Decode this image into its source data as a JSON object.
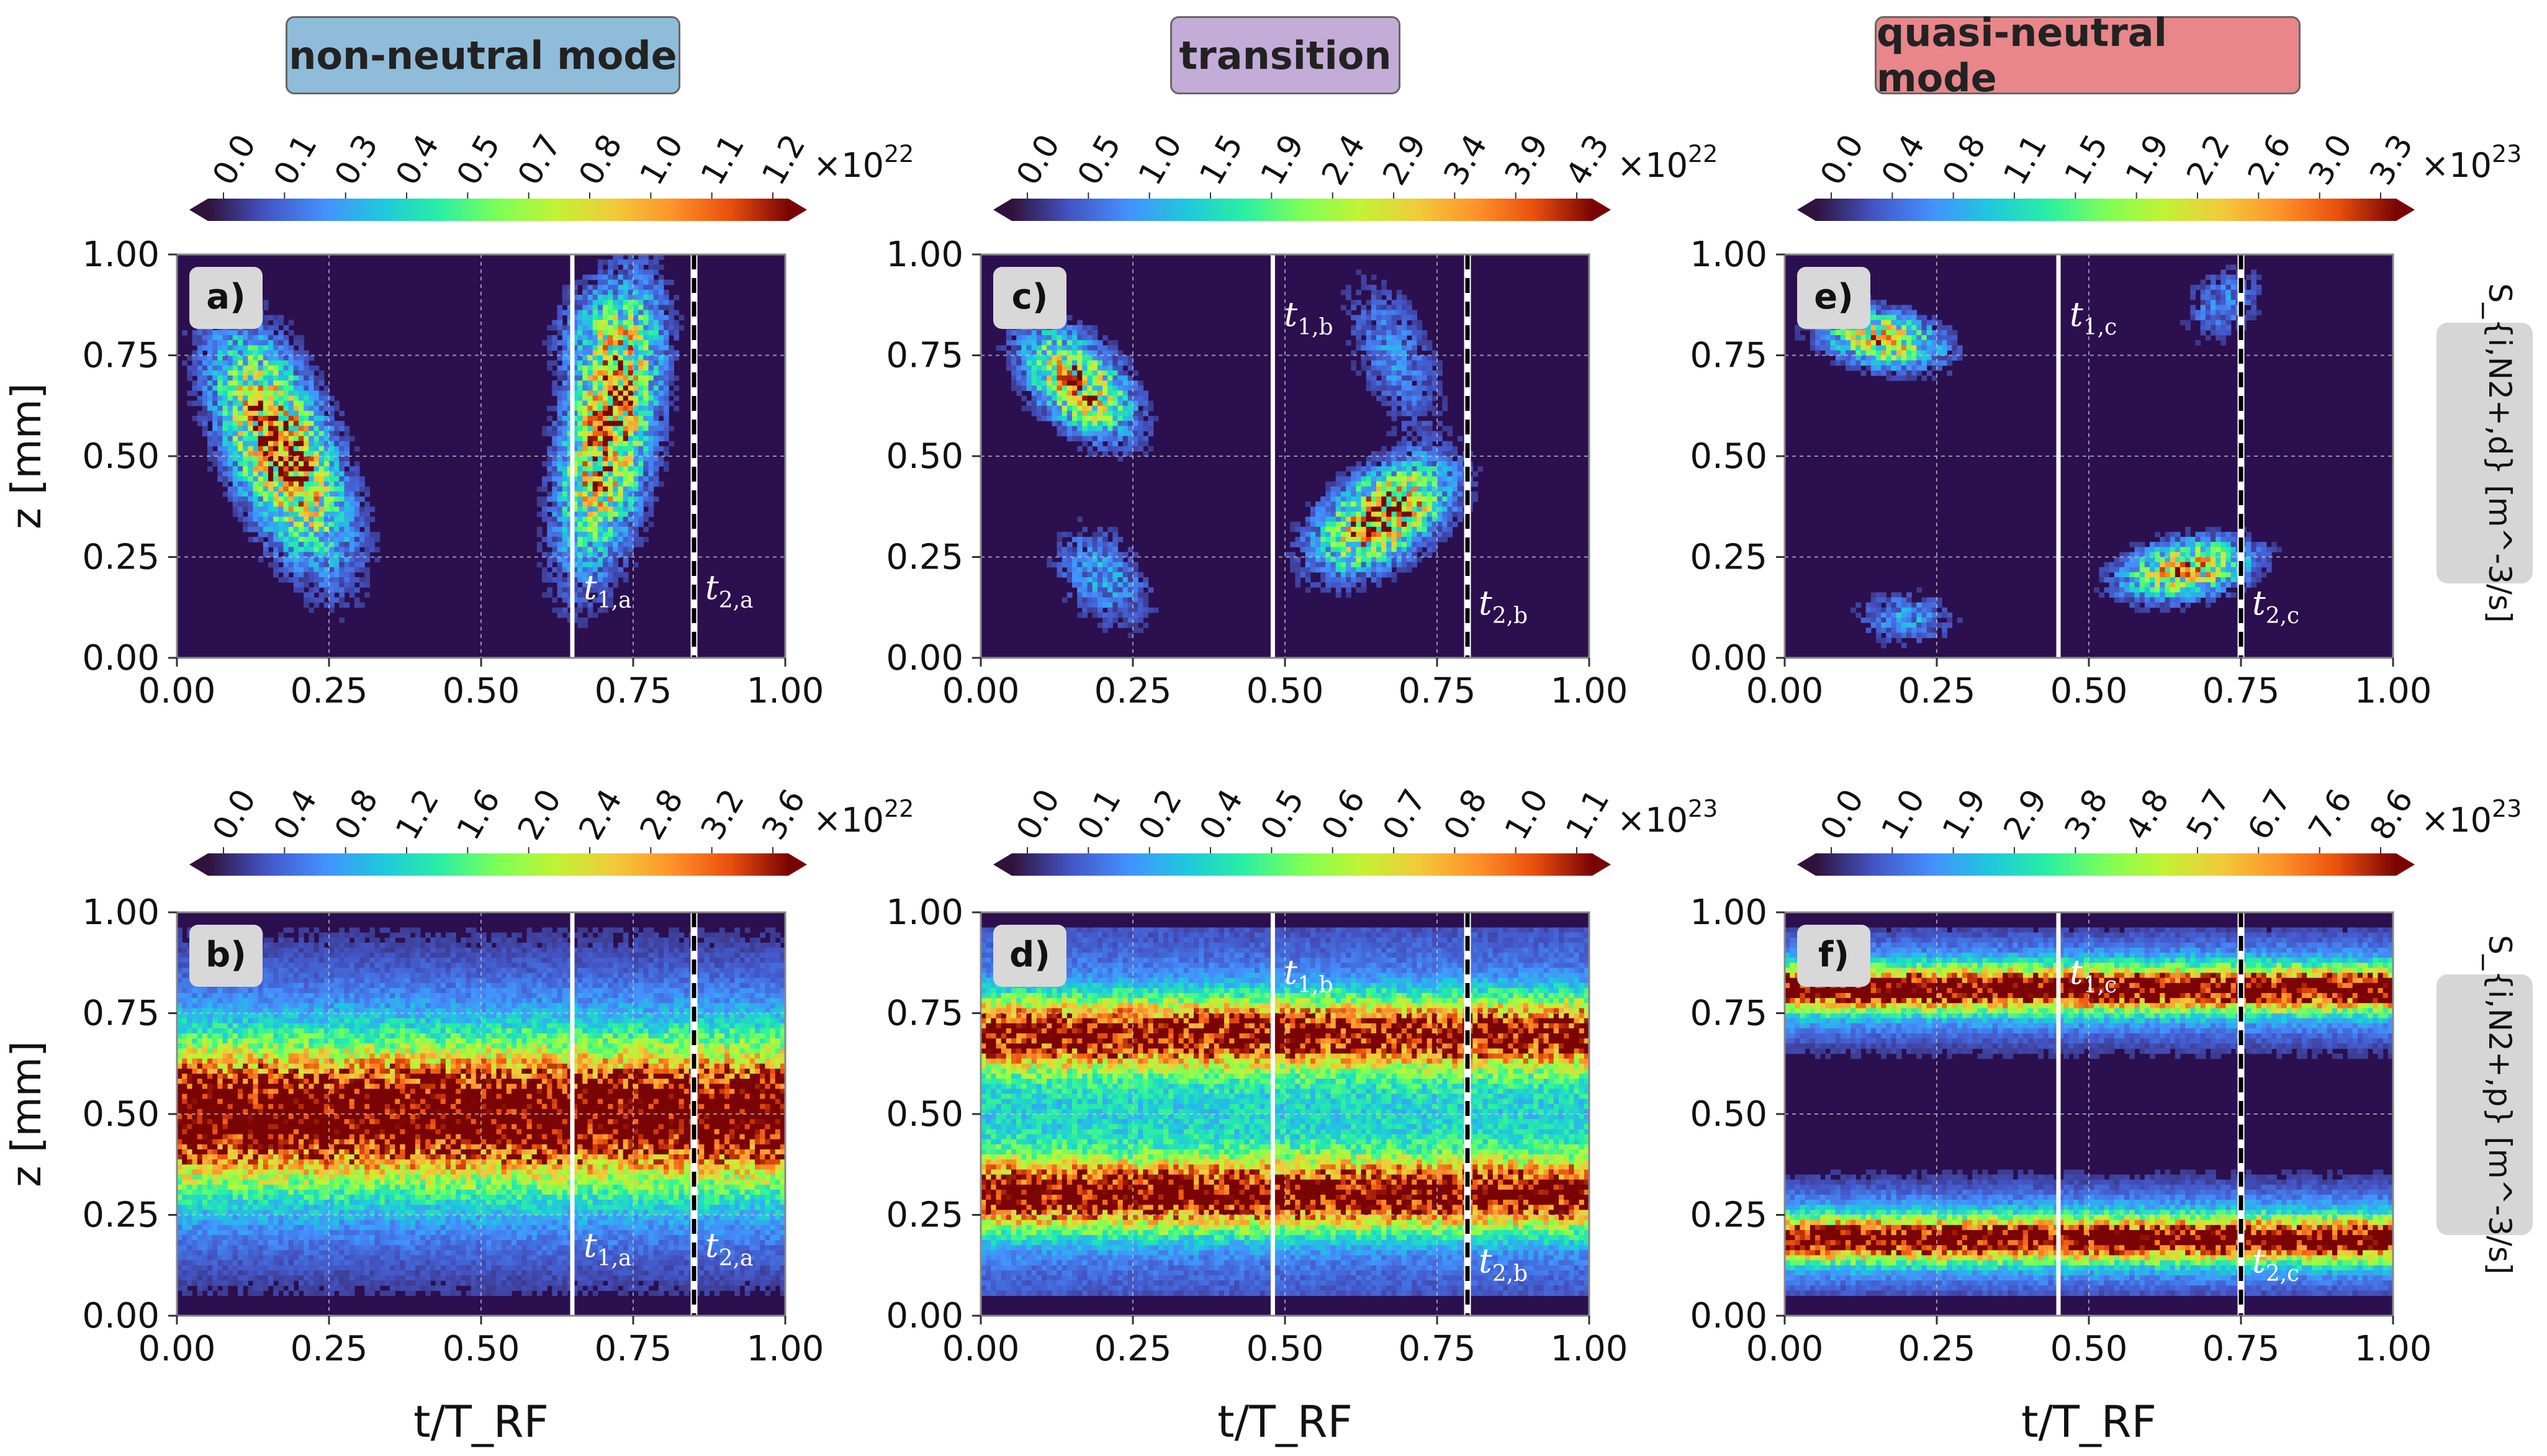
{
  "chart_data": [
    {
      "panel": "a)",
      "type": "heatmap",
      "row": "S_{i,N2+,d}",
      "title": "non-neutral mode",
      "xlabel": "",
      "ylabel": "z [mm]",
      "xlim": [
        0,
        1
      ],
      "ylim": [
        0,
        1
      ],
      "xticks": [
        "0.00",
        "0.25",
        "0.50",
        "0.75",
        "1.00"
      ],
      "yticks": [
        "0.00",
        "0.25",
        "0.50",
        "0.75",
        "1.00"
      ],
      "colorbar": {
        "ticks": [
          "0.0",
          "0.1",
          "0.3",
          "0.4",
          "0.5",
          "0.7",
          "0.8",
          "1.0",
          "1.1",
          "1.2"
        ],
        "multiplier": "×10",
        "exponent": "22"
      },
      "lines": [
        {
          "t": 0.65,
          "label": "t",
          "sub": "1,a",
          "style": "solid"
        },
        {
          "t": 0.85,
          "label": "t",
          "sub": "2,a",
          "style": "dashed"
        }
      ],
      "blobs": [
        {
          "t": 0.17,
          "z": 0.52,
          "st": 0.065,
          "sz": 0.17,
          "rho": -0.6,
          "amp": 1.0
        },
        {
          "t": 0.71,
          "z": 0.56,
          "st": 0.048,
          "sz": 0.2,
          "rho": 0.45,
          "amp": 0.95
        },
        {
          "t": 0.7,
          "z": 0.8,
          "st": 0.05,
          "sz": 0.08,
          "rho": 0,
          "amp": 0.25
        }
      ],
      "bands": []
    },
    {
      "panel": "b)",
      "type": "heatmap",
      "row": "S_{i,N2+,p}",
      "title": "non-neutral mode",
      "xlabel": "t/T_RF",
      "ylabel": "z [mm]",
      "xlim": [
        0,
        1
      ],
      "ylim": [
        0,
        1
      ],
      "xticks": [
        "0.00",
        "0.25",
        "0.50",
        "0.75",
        "1.00"
      ],
      "yticks": [
        "0.00",
        "0.25",
        "0.50",
        "0.75",
        "1.00"
      ],
      "colorbar": {
        "ticks": [
          "0.0",
          "0.4",
          "0.8",
          "1.2",
          "1.6",
          "2.0",
          "2.4",
          "2.8",
          "3.2",
          "3.6"
        ],
        "multiplier": "×10",
        "exponent": "22"
      },
      "lines": [
        {
          "t": 0.65,
          "label": "t",
          "sub": "1,a",
          "style": "solid"
        },
        {
          "t": 0.85,
          "label": "t",
          "sub": "2,a",
          "style": "dashed"
        }
      ],
      "blobs": [],
      "bands": [
        {
          "z": 0.5,
          "s": 0.11,
          "amp": 0.85
        },
        {
          "z": 0.5,
          "s": 0.24,
          "amp": 0.35
        }
      ]
    },
    {
      "panel": "c)",
      "type": "heatmap",
      "row": "S_{i,N2+,d}",
      "title": "transition",
      "xlabel": "",
      "ylabel": "",
      "xlim": [
        0,
        1
      ],
      "ylim": [
        0,
        1
      ],
      "xticks": [
        "0.00",
        "0.25",
        "0.50",
        "0.75",
        "1.00"
      ],
      "yticks": [
        "0.00",
        "0.25",
        "0.50",
        "0.75",
        "1.00"
      ],
      "colorbar": {
        "ticks": [
          "0.0",
          "0.5",
          "1.0",
          "1.5",
          "1.9",
          "2.4",
          "2.9",
          "3.4",
          "3.9",
          "4.3"
        ],
        "multiplier": "×10",
        "exponent": "22"
      },
      "lines": [
        {
          "t": 0.48,
          "label": "t",
          "sub": "1,b",
          "style": "solid"
        },
        {
          "t": 0.8,
          "label": "t",
          "sub": "2,b",
          "style": "dashed"
        }
      ],
      "blobs": [
        {
          "t": 0.16,
          "z": 0.68,
          "st": 0.055,
          "sz": 0.08,
          "rho": -0.5,
          "amp": 0.85
        },
        {
          "t": 0.66,
          "z": 0.35,
          "st": 0.065,
          "sz": 0.08,
          "rho": 0.5,
          "amp": 1.0
        },
        {
          "t": 0.2,
          "z": 0.2,
          "st": 0.05,
          "sz": 0.08,
          "rho": -0.4,
          "amp": 0.25
        },
        {
          "t": 0.68,
          "z": 0.75,
          "st": 0.05,
          "sz": 0.12,
          "rho": -0.5,
          "amp": 0.2
        }
      ],
      "bands": []
    },
    {
      "panel": "d)",
      "type": "heatmap",
      "row": "S_{i,N2+,p}",
      "title": "transition",
      "xlabel": "t/T_RF",
      "ylabel": "",
      "xlim": [
        0,
        1
      ],
      "ylim": [
        0,
        1
      ],
      "xticks": [
        "0.00",
        "0.25",
        "0.50",
        "0.75",
        "1.00"
      ],
      "yticks": [
        "0.00",
        "0.25",
        "0.50",
        "0.75",
        "1.00"
      ],
      "colorbar": {
        "ticks": [
          "0.0",
          "0.1",
          "0.2",
          "0.4",
          "0.5",
          "0.6",
          "0.7",
          "0.8",
          "1.0",
          "1.1"
        ],
        "multiplier": "×10",
        "exponent": "23"
      },
      "lines": [
        {
          "t": 0.48,
          "label": "t",
          "sub": "1,b",
          "style": "solid"
        },
        {
          "t": 0.8,
          "label": "t",
          "sub": "2,b",
          "style": "dashed"
        }
      ],
      "blobs": [],
      "bands": [
        {
          "z": 0.7,
          "s": 0.06,
          "amp": 0.8
        },
        {
          "z": 0.3,
          "s": 0.06,
          "amp": 0.85
        },
        {
          "z": 0.5,
          "s": 0.3,
          "amp": 0.32
        }
      ]
    },
    {
      "panel": "e)",
      "type": "heatmap",
      "row": "S_{i,N2+,d}",
      "title": "quasi-neutral mode",
      "xlabel": "",
      "ylabel": "",
      "xlim": [
        0,
        1
      ],
      "ylim": [
        0,
        1
      ],
      "xticks": [
        "0.00",
        "0.25",
        "0.50",
        "0.75",
        "1.00"
      ],
      "yticks": [
        "0.00",
        "0.25",
        "0.50",
        "0.75",
        "1.00"
      ],
      "colorbar": {
        "ticks": [
          "0.0",
          "0.4",
          "0.8",
          "1.1",
          "1.5",
          "1.9",
          "2.2",
          "2.6",
          "3.0",
          "3.3"
        ],
        "multiplier": "×10",
        "exponent": "23"
      },
      "lines": [
        {
          "t": 0.45,
          "label": "t",
          "sub": "1,c",
          "style": "solid"
        },
        {
          "t": 0.75,
          "label": "t",
          "sub": "2,c",
          "style": "dashed"
        }
      ],
      "blobs": [
        {
          "t": 0.16,
          "z": 0.79,
          "st": 0.06,
          "sz": 0.045,
          "rho": -0.3,
          "amp": 0.75
        },
        {
          "t": 0.66,
          "z": 0.22,
          "st": 0.065,
          "sz": 0.045,
          "rho": 0.3,
          "amp": 0.8
        },
        {
          "t": 0.2,
          "z": 0.1,
          "st": 0.05,
          "sz": 0.04,
          "rho": 0,
          "amp": 0.25
        },
        {
          "t": 0.72,
          "z": 0.88,
          "st": 0.04,
          "sz": 0.06,
          "rho": 0.3,
          "amp": 0.2
        }
      ],
      "bands": []
    },
    {
      "panel": "f)",
      "type": "heatmap",
      "row": "S_{i,N2+,p}",
      "title": "quasi-neutral mode",
      "xlabel": "t/T_RF",
      "ylabel": "",
      "xlim": [
        0,
        1
      ],
      "ylim": [
        0,
        1
      ],
      "xticks": [
        "0.00",
        "0.25",
        "0.50",
        "0.75",
        "1.00"
      ],
      "yticks": [
        "0.00",
        "0.25",
        "0.50",
        "0.75",
        "1.00"
      ],
      "colorbar": {
        "ticks": [
          "0.0",
          "1.0",
          "1.9",
          "2.9",
          "3.8",
          "4.8",
          "5.7",
          "6.7",
          "7.6",
          "8.6"
        ],
        "multiplier": "×10",
        "exponent": "23"
      },
      "lines": [
        {
          "t": 0.45,
          "label": "t",
          "sub": "1,c",
          "style": "solid"
        },
        {
          "t": 0.75,
          "label": "t",
          "sub": "2,c",
          "style": "dashed"
        }
      ],
      "blobs": [],
      "bands": [
        {
          "z": 0.81,
          "s": 0.035,
          "amp": 0.85
        },
        {
          "z": 0.19,
          "s": 0.035,
          "amp": 0.85
        },
        {
          "z": 0.81,
          "s": 0.09,
          "amp": 0.3
        },
        {
          "z": 0.19,
          "s": 0.09,
          "amp": 0.3
        }
      ]
    }
  ],
  "header": {
    "col1": "non-neutral mode",
    "col2": "transition",
    "col3": "quasi-neutral mode",
    "col1_color": "#8fbcd9",
    "col2_color": "#c4acd9",
    "col3_color": "#e8868a"
  },
  "side_labels": {
    "top": "S_{i,N2+,d} [m^-3/s]",
    "bottom": "S_{i,N2+,p} [m^-3/s]"
  },
  "colors": {
    "heatmap_background": "#2b0f4e",
    "time_line": "#ffffff",
    "dashed_line": "#000000"
  }
}
